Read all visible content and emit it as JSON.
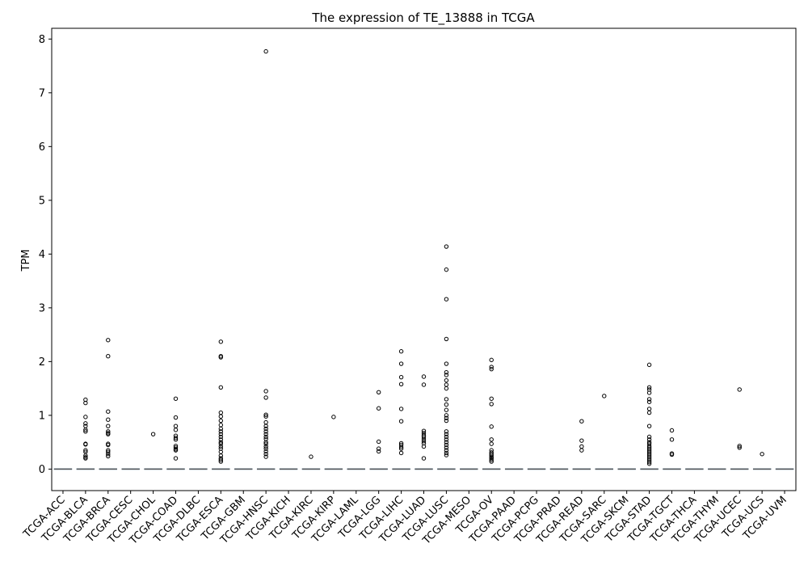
{
  "chart_data": {
    "type": "box",
    "title": "The expression of TE_13888 in TCGA",
    "xlabel": "",
    "ylabel": "TPM",
    "ylim": [
      -0.4,
      8.2
    ],
    "yticks": [
      0,
      1,
      2,
      3,
      4,
      5,
      6,
      7,
      8
    ],
    "categories": [
      "TCGA-ACC",
      "TCGA-BLCA",
      "TCGA-BRCA",
      "TCGA-CESC",
      "TCGA-CHOL",
      "TCGA-COAD",
      "TCGA-DLBC",
      "TCGA-ESCA",
      "TCGA-GBM",
      "TCGA-HNSC",
      "TCGA-KICH",
      "TCGA-KIRC",
      "TCGA-KIRP",
      "TCGA-LAML",
      "TCGA-LGG",
      "TCGA-LIHC",
      "TCGA-LUAD",
      "TCGA-LUSC",
      "TCGA-MESO",
      "TCGA-OV",
      "TCGA-PAAD",
      "TCGA-PCPG",
      "TCGA-PRAD",
      "TCGA-READ",
      "TCGA-SARC",
      "TCGA-SKCM",
      "TCGA-STAD",
      "TCGA-TGCT",
      "TCGA-THCA",
      "TCGA-THYM",
      "TCGA-UCEC",
      "TCGA-UCS",
      "TCGA-UVM"
    ],
    "median_values": [
      0,
      0,
      0,
      0,
      0,
      0,
      0,
      0,
      0,
      0,
      0,
      0,
      0,
      0,
      0,
      0,
      0,
      0,
      0,
      0,
      0,
      0,
      0,
      0,
      0,
      0,
      0,
      0,
      0,
      0,
      0,
      0,
      0
    ],
    "outliers": [
      [],
      [
        1.29,
        1.23,
        0.97,
        0.85,
        0.8,
        0.73,
        0.7,
        0.47,
        0.46,
        0.35,
        0.32,
        0.25,
        0.22,
        0.2
      ],
      [
        2.4,
        2.1,
        1.07,
        0.92,
        0.8,
        0.7,
        0.67,
        0.65,
        0.47,
        0.45,
        0.35,
        0.32,
        0.28,
        0.24
      ],
      [],
      [
        0.65
      ],
      [
        1.31,
        0.96,
        0.8,
        0.73,
        0.62,
        0.58,
        0.55,
        0.43,
        0.4,
        0.37,
        0.35,
        0.2
      ],
      [],
      [
        2.37,
        2.1,
        2.08,
        1.52,
        1.05,
        0.98,
        0.9,
        0.82,
        0.75,
        0.7,
        0.65,
        0.6,
        0.55,
        0.5,
        0.47,
        0.42,
        0.38,
        0.32,
        0.25,
        0.2,
        0.17,
        0.14
      ],
      [],
      [
        7.77,
        1.45,
        1.33,
        1.01,
        0.98,
        0.87,
        0.8,
        0.75,
        0.7,
        0.65,
        0.6,
        0.56,
        0.5,
        0.47,
        0.42,
        0.38,
        0.33,
        0.28,
        0.23
      ],
      [],
      [
        0.23
      ],
      [
        0.97
      ],
      [],
      [
        1.43,
        1.13,
        0.51,
        0.38,
        0.33
      ],
      [
        2.19,
        1.96,
        1.71,
        1.58,
        1.12,
        0.89,
        0.48,
        0.45,
        0.41,
        0.38,
        0.3
      ],
      [
        1.72,
        1.57,
        0.71,
        0.67,
        0.63,
        0.6,
        0.56,
        0.52,
        0.48,
        0.42,
        0.2
      ],
      [
        4.14,
        3.71,
        3.16,
        2.42,
        1.96,
        1.8,
        1.75,
        1.65,
        1.57,
        1.5,
        1.3,
        1.2,
        1.1,
        1.0,
        0.95,
        0.9,
        0.7,
        0.65,
        0.6,
        0.55,
        0.5,
        0.45,
        0.4,
        0.35,
        0.3,
        0.26
      ],
      [],
      [
        2.03,
        1.9,
        1.86,
        1.31,
        1.21,
        0.79,
        0.55,
        0.47,
        0.35,
        0.31,
        0.28,
        0.25,
        0.22,
        0.2,
        0.17,
        0.14
      ],
      [],
      [],
      [],
      [
        0.89,
        0.53,
        0.42,
        0.35
      ],
      [
        1.36
      ],
      [],
      [
        1.94,
        1.52,
        1.48,
        1.42,
        1.3,
        1.25,
        1.12,
        1.05,
        0.8,
        0.6,
        0.55,
        0.5,
        0.47,
        0.43,
        0.4,
        0.37,
        0.34,
        0.31,
        0.28,
        0.25,
        0.22,
        0.19,
        0.16,
        0.13,
        0.1
      ],
      [
        0.72,
        0.55,
        0.29,
        0.27
      ],
      [],
      [],
      [
        1.48,
        0.43,
        0.4
      ],
      [
        0.28
      ],
      []
    ],
    "grid": false,
    "legend": "none",
    "box_color": "#1f77b4",
    "median_color": "#555555"
  }
}
